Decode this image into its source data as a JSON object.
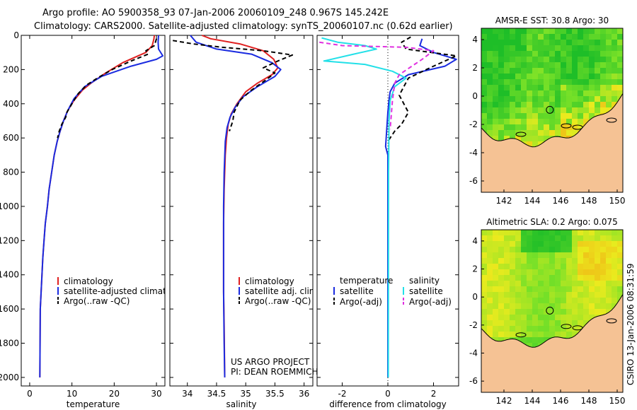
{
  "header": {
    "line1": "Argo profile: AO 5900358_93 07-Jan-2006 20060109_248 0.967S 145.242E",
    "line2": "Climatology: CARS2000. Satellite-adjusted climatology: synTS_20060107.nc (0.62d earlier)"
  },
  "credits": {
    "project": "US ARGO PROJECT",
    "pi": "PI: DEAN ROEMMICH",
    "stamp": "CSIRO 13-Jan-2006 08:31:59"
  },
  "colors": {
    "climatology": "#e02020",
    "satellite": "#1a2be0",
    "argo": "#000000",
    "salinity_satellite": "#22e0e8",
    "salinity_argo": "#e030e0",
    "land": "#f5c294"
  },
  "chart_data": [
    {
      "id": "temperature",
      "type": "line",
      "xlabel": "temperature",
      "ylabel": "",
      "xlim": [
        -2,
        32
      ],
      "ylim": [
        2050,
        0
      ],
      "xticks": [
        0,
        10,
        20,
        30
      ],
      "yticks": [
        0,
        200,
        400,
        600,
        800,
        1000,
        1200,
        1400,
        1600,
        1800,
        2000
      ],
      "legend": [
        "climatology",
        "satellite-adjusted climatology",
        "Argo(..raw -QC)"
      ],
      "legend_position": "bottom-right",
      "series": [
        {
          "name": "climatology",
          "color": "#e02020",
          "dash": "",
          "x": [
            29.5,
            29.4,
            29.0,
            27.5,
            22.0,
            18.0,
            14.5,
            12.5,
            10.5,
            9.0,
            8.0,
            7.2,
            6.5,
            5.8,
            5.2,
            4.6,
            4.2,
            3.7,
            3.4,
            3.1,
            2.9,
            2.7,
            2.5,
            2.4
          ],
          "y": [
            0,
            20,
            60,
            100,
            160,
            220,
            280,
            320,
            380,
            440,
            500,
            560,
            620,
            700,
            800,
            900,
            1000,
            1100,
            1200,
            1300,
            1400,
            1500,
            1600,
            2000
          ]
        },
        {
          "name": "satellite",
          "color": "#1a2be0",
          "dash": "",
          "x": [
            30.5,
            30.4,
            30.5,
            31.5,
            30.0,
            24.0,
            17.0,
            13.0,
            10.5,
            9.0,
            8.0,
            7.2,
            6.5,
            5.8,
            5.2,
            4.6,
            4.2,
            3.7,
            3.4,
            3.1,
            2.9,
            2.7,
            2.5,
            2.4
          ],
          "y": [
            0,
            40,
            80,
            120,
            140,
            180,
            240,
            300,
            370,
            440,
            500,
            560,
            620,
            700,
            800,
            900,
            1000,
            1100,
            1200,
            1300,
            1400,
            1500,
            1600,
            2000
          ]
        },
        {
          "name": "Argo",
          "color": "#000000",
          "dash": "6,4",
          "x": [
            30.0,
            29.5,
            27.5,
            28.0,
            24.0,
            19.5,
            16.0,
            13.5,
            11.5,
            10.0,
            8.8,
            8.5,
            7.6,
            7.0,
            6.6
          ],
          "y": [
            20,
            60,
            90,
            110,
            150,
            200,
            250,
            290,
            340,
            400,
            450,
            480,
            520,
            560,
            600
          ]
        }
      ]
    },
    {
      "id": "salinity",
      "type": "line",
      "xlabel": "salinity",
      "ylabel": "",
      "xlim": [
        33.7,
        36.15
      ],
      "ylim": [
        2050,
        0
      ],
      "xticks": [
        34,
        34.5,
        35,
        35.5,
        36
      ],
      "yticks": [
        0,
        200,
        400,
        600,
        800,
        1000,
        1200,
        1400,
        1600,
        1800,
        2000
      ],
      "legend": [
        "climatology",
        "satellite adj. clim.",
        "Argo(..raw -QC)"
      ],
      "legend_position": "bottom-right",
      "series": [
        {
          "name": "climatology",
          "color": "#e02020",
          "dash": "",
          "x": [
            34.25,
            34.4,
            34.9,
            35.3,
            35.48,
            35.55,
            35.45,
            35.2,
            35.0,
            34.85,
            34.75,
            34.7,
            34.67,
            34.65,
            34.63,
            34.62,
            34.62,
            34.62,
            34.63,
            34.64
          ],
          "y": [
            0,
            20,
            50,
            90,
            140,
            190,
            230,
            280,
            330,
            400,
            460,
            520,
            600,
            700,
            900,
            1100,
            1300,
            1500,
            1700,
            2000
          ]
        },
        {
          "name": "satellite",
          "color": "#1a2be0",
          "dash": "",
          "x": [
            34.05,
            34.15,
            34.5,
            35.1,
            35.45,
            35.6,
            35.5,
            35.2,
            34.95,
            34.82,
            34.73,
            34.68,
            34.65,
            34.63,
            34.62,
            34.62,
            34.62,
            34.63,
            34.64
          ],
          "y": [
            0,
            40,
            80,
            110,
            160,
            200,
            240,
            300,
            360,
            420,
            480,
            540,
            620,
            800,
            1000,
            1200,
            1500,
            1800,
            2000
          ]
        },
        {
          "name": "Argo",
          "color": "#000000",
          "dash": "6,4",
          "x": [
            33.75,
            34.1,
            34.6,
            35.3,
            35.8,
            35.55,
            35.3,
            35.5,
            35.35,
            35.1,
            34.9,
            34.8,
            34.78,
            34.72
          ],
          "y": [
            30,
            50,
            70,
            90,
            115,
            150,
            190,
            220,
            260,
            320,
            380,
            450,
            500,
            560
          ]
        }
      ]
    },
    {
      "id": "difference",
      "type": "line",
      "xlabel": "difference from climatology",
      "ylabel": "",
      "xlim": [
        -3.1,
        3.1
      ],
      "ylim": [
        2050,
        0
      ],
      "xticks": [
        -2,
        0,
        2
      ],
      "yticks": [
        0,
        200,
        400,
        600,
        800,
        1000,
        1200,
        1400,
        1600,
        1800,
        2000
      ],
      "legend": [
        "temperature",
        "satellite",
        "Argo(-adj)",
        "salinity",
        "satellite",
        "Argo(-adj)"
      ],
      "legend_position": "bottom",
      "series": [
        {
          "name": "temperature satellite",
          "color": "#1a2be0",
          "dash": "",
          "x": [
            1.5,
            1.4,
            2.0,
            3.0,
            2.5,
            0.9,
            0.3,
            0.1,
            0.05,
            0.0,
            -0.1,
            0.0,
            0.0,
            0.0
          ],
          "y": [
            20,
            60,
            100,
            140,
            180,
            230,
            280,
            330,
            380,
            450,
            650,
            700,
            900,
            2000
          ]
        },
        {
          "name": "temperature Argo",
          "color": "#000000",
          "dash": "6,4",
          "x": [
            1.0,
            0.6,
            0.8,
            3.0,
            2.0,
            0.9,
            0.5,
            0.9,
            0.6,
            0.3,
            0.0
          ],
          "y": [
            10,
            40,
            80,
            120,
            180,
            250,
            350,
            450,
            520,
            560,
            620
          ]
        },
        {
          "name": "salinity satellite",
          "color": "#22e0e8",
          "dash": "",
          "x": [
            -2.9,
            -2.2,
            -1.0,
            -0.5,
            -1.5,
            -2.8,
            -1.0,
            0.2,
            0.8,
            0.3,
            0.1,
            0.05,
            0.03,
            0.02
          ],
          "y": [
            15,
            40,
            60,
            80,
            110,
            150,
            170,
            210,
            250,
            300,
            380,
            500,
            800,
            2000
          ]
        },
        {
          "name": "salinity Argo",
          "color": "#e030e0",
          "dash": "6,4",
          "x": [
            -3.0,
            -2.0,
            0.8,
            2.0,
            1.5,
            0.5,
            0.3,
            0.2,
            0.1
          ],
          "y": [
            40,
            60,
            70,
            90,
            140,
            230,
            280,
            380,
            550
          ]
        }
      ]
    },
    {
      "id": "sst_map",
      "type": "heatmap",
      "title": "AMSR-E  SST: 30.8  Argo: 30",
      "xlim": [
        140.4,
        150.4
      ],
      "ylim": [
        -6.8,
        4.8
      ],
      "xticks": [
        142,
        144,
        146,
        148,
        150
      ],
      "yticks": [
        -6,
        -4,
        -2,
        0,
        2,
        4
      ],
      "argo_position": {
        "lon": 145.242,
        "lat": -0.967
      }
    },
    {
      "id": "sla_map",
      "type": "heatmap",
      "title": "Altimetric SLA: 0.2  Argo: 0.075",
      "xlim": [
        140.4,
        150.4
      ],
      "ylim": [
        -6.8,
        4.8
      ],
      "xticks": [
        142,
        144,
        146,
        148,
        150
      ],
      "yticks": [
        -6,
        -4,
        -2,
        0,
        2,
        4
      ],
      "argo_position": {
        "lon": 145.242,
        "lat": -0.967
      }
    }
  ]
}
